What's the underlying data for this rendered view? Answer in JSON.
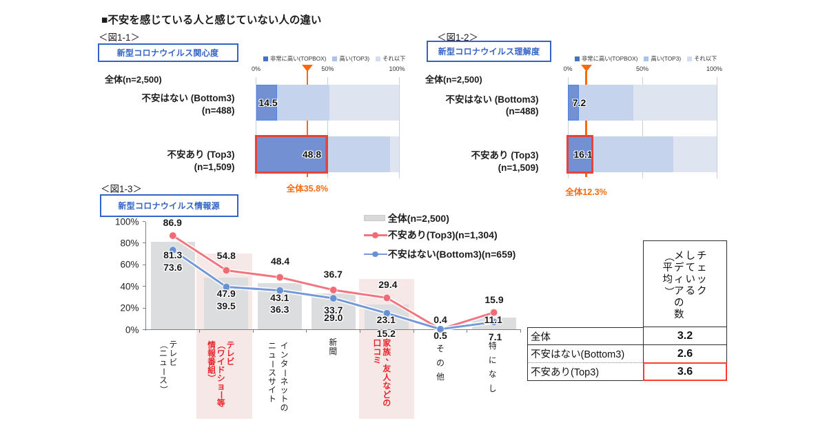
{
  "page": {
    "title": "■不安を感じている人と感じていない人の違い",
    "background": "#ffffff"
  },
  "ui": {
    "fig1_tag": "＜図1-1＞",
    "fig2_tag": "＜図1-2＞",
    "fig3_tag": "＜図1-3＞",
    "fig1_box_title": "新型コロナウイルス関心度",
    "fig2_box_title": "新型コロナウイルス理解度",
    "fig3_box_title": "新型コロナウイルス情報源",
    "fig1_group_label": "全体(n=2,500)",
    "fig2_group_label": "全体(n=2,500)"
  },
  "colors": {
    "accent_blue": "#3463C6",
    "seg_topbox": "#7390D3",
    "seg_topbox_border": "#4B84E4",
    "seg_top3": "#C5D3ED",
    "seg_rest": "#DFE4F1",
    "legend_sq1": "#4472C4",
    "legend_sq2": "#A9C3EE",
    "legend_sq3": "#D4DDF0",
    "orange": "#F76B0E",
    "highlight_red": "#E8423C",
    "line_red": "#F1747E",
    "dot_red": "#EF6B76",
    "line_blue": "#7398D8",
    "dot_blue": "#6690D4",
    "bar_gray": "#DCDDDE",
    "pink_highlight": "#F7E8E8",
    "red_text": "#E8232B",
    "table_red_border": "#FF3B30"
  },
  "chart_data": [
    {
      "id": "fig1-1",
      "type": "bar",
      "orientation": "horizontal",
      "stacked": true,
      "title": "新型コロナウイルス関心度",
      "legend": [
        "非常に高い(TOPBOX)",
        "高い(TOP3)",
        "それ以下"
      ],
      "legend_position": "top",
      "xlim": [
        0,
        100
      ],
      "x_ticks": [
        "0%",
        "50%",
        "100%"
      ],
      "group_label": "全体(n=2,500)",
      "categories": [
        "不安はない (Bottom3)",
        "不安あり (Top3)"
      ],
      "category_sublabels": [
        "(n=488)",
        "(n=1,509)"
      ],
      "series": [
        {
          "name": "非常に高い(TOPBOX)",
          "values": [
            14.5,
            48.8
          ]
        },
        {
          "name": "高い(TOP3)",
          "values": [
            36.5,
            44.7
          ]
        },
        {
          "name": "それ以下",
          "values": [
            49.0,
            6.5
          ]
        }
      ],
      "data_labels": [
        "14.5",
        "48.8"
      ],
      "highlight_category_index": 1,
      "overall_marker": {
        "value": 35.8,
        "label": "全体35.8%"
      }
    },
    {
      "id": "fig1-2",
      "type": "bar",
      "orientation": "horizontal",
      "stacked": true,
      "title": "新型コロナウイルス理解度",
      "legend": [
        "非常に高い(TOPBOX)",
        "高い(TOP3)",
        "それ以下"
      ],
      "legend_position": "top",
      "xlim": [
        0,
        100
      ],
      "x_ticks": [
        "0%",
        "50%",
        "100%"
      ],
      "group_label": "全体(n=2,500)",
      "categories": [
        "不安はない (Bottom3)",
        "不安あり (Top3)"
      ],
      "category_sublabels": [
        "(n=488)",
        "(n=1,509)"
      ],
      "series": [
        {
          "name": "非常に高い(TOPBOX)",
          "values": [
            7.2,
            16.1
          ]
        },
        {
          "name": "高い(TOP3)",
          "values": [
            36.6,
            54.9
          ]
        },
        {
          "name": "それ以下",
          "values": [
            56.2,
            29.0
          ]
        }
      ],
      "data_labels": [
        "7.2",
        "16.1"
      ],
      "highlight_category_index": 1,
      "overall_marker": {
        "value": 12.3,
        "label": "全体12.3%"
      }
    },
    {
      "id": "fig1-3",
      "type": "bar",
      "combo": true,
      "title": "新型コロナウイルス情報源",
      "ylim": [
        0,
        100
      ],
      "y_ticks": [
        "100%",
        "80%",
        "60%",
        "40%",
        "20%",
        "0%"
      ],
      "categories": [
        "テレビ（ニュース）",
        "テレビ（ワイドショー等情報番組）",
        "インターネットのニュースサイト",
        "新聞",
        "家族、友人などの口コミ",
        "その他",
        "特になし"
      ],
      "category_label_lines": [
        [
          "テレビ",
          "（ニュース）"
        ],
        [
          "テレビ",
          "（ワイドショー等",
          "情報番組）"
        ],
        [
          "インターネットの",
          "ニュースサイト"
        ],
        [
          "新聞"
        ],
        [
          "家族、友人などの",
          "口コミ"
        ],
        [
          "その他"
        ],
        [
          "特になし"
        ]
      ],
      "emphasized_categories": [
        1,
        4
      ],
      "series": [
        {
          "name": "全体(n=2,500)",
          "kind": "bar",
          "values": [
            81.3,
            47.9,
            43.1,
            33.7,
            23.1,
            0.5,
            11.1
          ]
        },
        {
          "name": "不安あり(Top3)(n=1,304)",
          "kind": "line",
          "values": [
            86.9,
            54.8,
            48.4,
            36.7,
            29.4,
            0.4,
            15.9
          ]
        },
        {
          "name": "不安はない(Bottom3)(n=659)",
          "kind": "line",
          "values": [
            73.6,
            39.5,
            36.3,
            29.0,
            15.2,
            0.5,
            7.1
          ]
        }
      ]
    },
    {
      "id": "media-count-table",
      "type": "table",
      "header": "チェックしているメディアの数（平均）",
      "header_lines": [
        "チェック",
        "している",
        "メディアの数",
        "（平均）"
      ],
      "rows": [
        {
          "label": "全体",
          "value": "3.2",
          "highlight": false
        },
        {
          "label": "不安はない(Bottom3)",
          "value": "2.6",
          "highlight": false
        },
        {
          "label": "不安あり(Top3)",
          "value": "3.6",
          "highlight": true
        }
      ]
    }
  ]
}
